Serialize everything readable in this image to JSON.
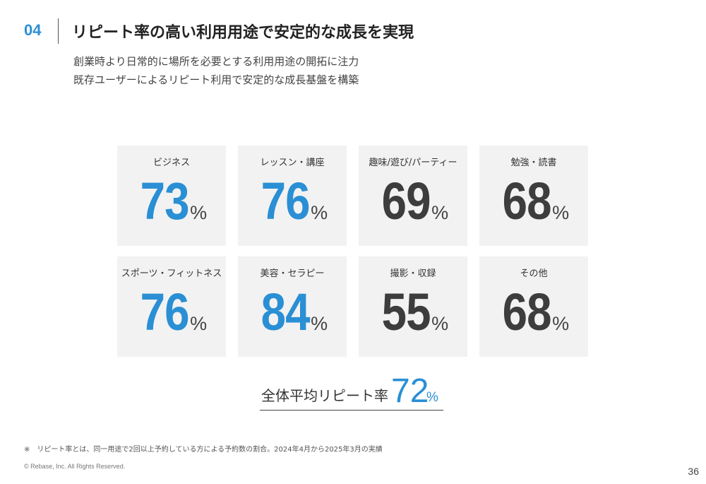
{
  "header": {
    "section_number": "04",
    "title": "リピート率の高い利用用途で安定的な成長を実現",
    "subtitle_lines": [
      "創業時より日常的に場所を必要とする利用用途の開拓に注力",
      "既存ユーザーによるリピート利用で安定的な成長基盤を構築"
    ]
  },
  "cards": [
    {
      "label": "ビジネス",
      "value": "73",
      "unit": "%",
      "highlight": true
    },
    {
      "label": "レッスン・講座",
      "value": "76",
      "unit": "%",
      "highlight": true
    },
    {
      "label": "趣味/遊び/パーティー",
      "value": "69",
      "unit": "%",
      "highlight": false
    },
    {
      "label": "勉強・読書",
      "value": "68",
      "unit": "%",
      "highlight": false
    },
    {
      "label": "スポーツ・フィットネス",
      "value": "76",
      "unit": "%",
      "highlight": true
    },
    {
      "label": "美容・セラピー",
      "value": "84",
      "unit": "%",
      "highlight": true
    },
    {
      "label": "撮影・収録",
      "value": "55",
      "unit": "%",
      "highlight": false
    },
    {
      "label": "その他",
      "value": "68",
      "unit": "%",
      "highlight": false
    }
  ],
  "average": {
    "label": "全体平均リピート率",
    "value": "72",
    "unit": "%"
  },
  "footnote": "※　リピート率とは、同一用途で2回以上予約している方による予約数の割合。2024年4月から2025年3月の実績",
  "copyright": "© Rebase, Inc. All Rights Reserved.",
  "page_number": "36",
  "colors": {
    "accent_blue": "#2a8fd4",
    "dark_value": "#3d3d3d",
    "card_background": "#f2f2f2"
  }
}
